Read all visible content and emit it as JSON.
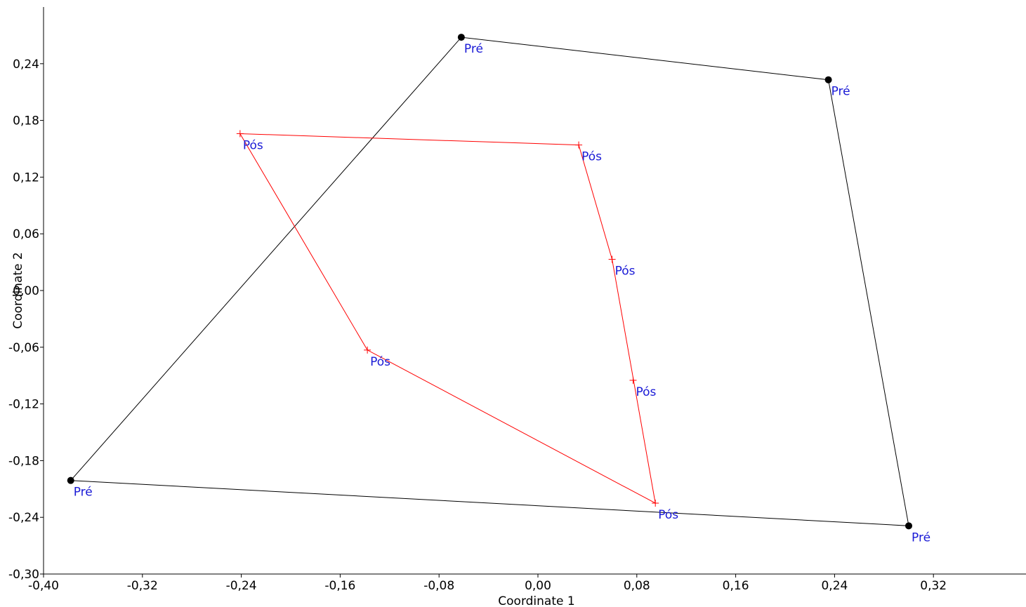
{
  "chart_data": {
    "type": "scatter",
    "xlabel": "Coordinate 1",
    "ylabel": "Coordinate 2",
    "xlim": [
      -0.4,
      0.4
    ],
    "ylim": [
      -0.3,
      0.3
    ],
    "x_ticks": [
      "-0,40",
      "-0,32",
      "-0,24",
      "-0,16",
      "-0,08",
      "0,00",
      "0,08",
      "0,16",
      "0,24",
      "0,32"
    ],
    "y_ticks": [
      "-0,30",
      "-0,24",
      "-0,18",
      "-0,12",
      "-0,06",
      "0,00",
      "0,06",
      "0,12",
      "0,18",
      "0,24"
    ],
    "grid": false,
    "label_color": "#1a1ad6",
    "series": [
      {
        "name": "Pré",
        "marker": "dot",
        "color": "#000000",
        "hull": true,
        "points": [
          {
            "x": -0.378,
            "y": -0.201,
            "label": "Pré"
          },
          {
            "x": -0.062,
            "y": 0.268,
            "label": "Pré"
          },
          {
            "x": 0.235,
            "y": 0.223,
            "label": "Pré"
          },
          {
            "x": 0.3,
            "y": -0.249,
            "label": "Pré"
          }
        ]
      },
      {
        "name": "Pós",
        "marker": "plus",
        "color": "#ff0000",
        "hull": true,
        "points": [
          {
            "x": -0.241,
            "y": 0.166,
            "label": "Pós"
          },
          {
            "x": 0.033,
            "y": 0.154,
            "label": "Pós"
          },
          {
            "x": 0.06,
            "y": 0.033,
            "label": "Pós"
          },
          {
            "x": 0.077,
            "y": -0.095,
            "label": "Pós"
          },
          {
            "x": 0.095,
            "y": -0.225,
            "label": "Pós"
          },
          {
            "x": -0.138,
            "y": -0.063,
            "label": "Pós"
          }
        ]
      }
    ]
  }
}
